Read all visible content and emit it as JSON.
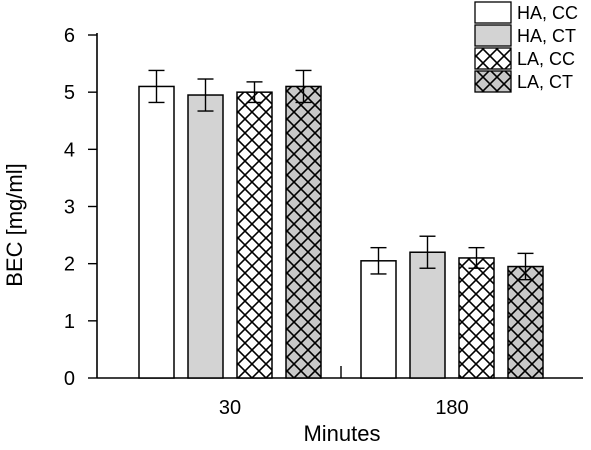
{
  "chart_data": {
    "type": "bar",
    "xlabel": "Minutes",
    "ylabel": "BEC [mg/ml]",
    "categories": [
      "30",
      "180"
    ],
    "ylim": [
      0,
      6
    ],
    "yticks": [
      0,
      1,
      2,
      3,
      4,
      5,
      6
    ],
    "grid": false,
    "legend_position": "top-right",
    "error_bars": true,
    "series": [
      {
        "name": "HA, CC",
        "values": [
          5.1,
          2.05
        ],
        "errors": [
          0.28,
          0.23
        ],
        "fill": "#ffffff",
        "pattern": "none"
      },
      {
        "name": "HA, CT",
        "values": [
          4.95,
          2.2
        ],
        "errors": [
          0.28,
          0.28
        ],
        "fill": "#d3d3d3",
        "pattern": "none"
      },
      {
        "name": "LA, CC",
        "values": [
          5.0,
          2.1
        ],
        "errors": [
          0.18,
          0.18
        ],
        "fill": "#ffffff",
        "pattern": "crosshatch"
      },
      {
        "name": "LA, CT",
        "values": [
          5.1,
          1.95
        ],
        "errors": [
          0.28,
          0.23
        ],
        "fill": "#c8c8c8",
        "pattern": "crosshatch"
      }
    ]
  }
}
